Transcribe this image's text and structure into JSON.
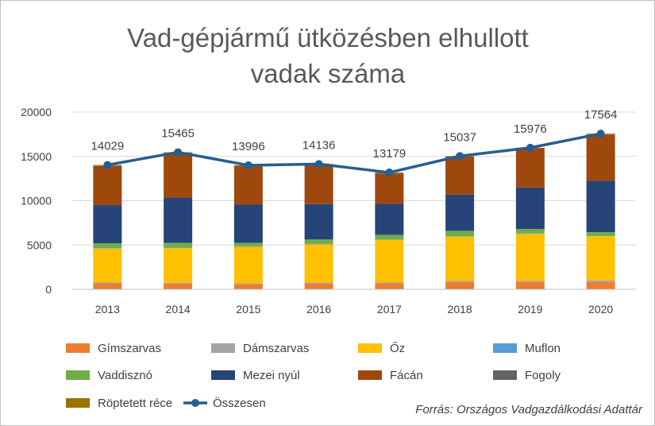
{
  "chart_data": {
    "type": "bar",
    "stacked": true,
    "title_lines": [
      "Vad-gépjármű ütközésben elhullott",
      "vadak száma"
    ],
    "xlabel": "",
    "ylabel": "",
    "categories": [
      "2013",
      "2014",
      "2015",
      "2016",
      "2017",
      "2018",
      "2019",
      "2020"
    ],
    "ylim": [
      0,
      20000
    ],
    "yticks": [
      0,
      5000,
      10000,
      15000,
      20000
    ],
    "ytick_labels": [
      "0",
      "5000",
      "10000",
      "15000",
      "20000"
    ],
    "grid": true,
    "legend_position": "bottom",
    "series": [
      {
        "name": "Gímszarvas",
        "color": "#ED7D31",
        "values": [
          700,
          650,
          600,
          650,
          700,
          800,
          800,
          800
        ]
      },
      {
        "name": "Dámszarvas",
        "color": "#A5A5A5",
        "values": [
          100,
          100,
          100,
          120,
          100,
          150,
          150,
          200
        ]
      },
      {
        "name": "Őz",
        "color": "#FFC000",
        "values": [
          3800,
          3900,
          4100,
          4300,
          4800,
          5000,
          5300,
          5000
        ]
      },
      {
        "name": "Muflon",
        "color": "#5B9BD5",
        "values": [
          50,
          50,
          50,
          50,
          50,
          50,
          50,
          50
        ]
      },
      {
        "name": "Vaddisznó",
        "color": "#70AD47",
        "values": [
          550,
          550,
          400,
          500,
          500,
          600,
          500,
          400
        ]
      },
      {
        "name": "Mezei nyúl",
        "color": "#264478",
        "values": [
          4300,
          5100,
          4300,
          4000,
          3500,
          4100,
          4700,
          5800
        ]
      },
      {
        "name": "Fácán",
        "color": "#9E480E",
        "values": [
          4429,
          5015,
          4346,
          4416,
          3429,
          4237,
          4376,
          5214
        ]
      },
      {
        "name": "Fogoly",
        "color": "#636363",
        "values": [
          50,
          50,
          50,
          50,
          50,
          50,
          50,
          50
        ]
      },
      {
        "name": "Röptetett réce",
        "color": "#997300",
        "values": [
          50,
          50,
          50,
          50,
          50,
          50,
          50,
          50
        ]
      }
    ],
    "total_series": {
      "name": "Összesen",
      "color": "#255E91",
      "values": [
        14029,
        15465,
        13996,
        14136,
        13179,
        15037,
        15976,
        17564
      ],
      "labels": [
        "14029",
        "15465",
        "13996",
        "14136",
        "13179",
        "15037",
        "15976",
        "17564"
      ]
    },
    "source": "Forrás: Országos Vadgazdálkodási Adattár"
  }
}
